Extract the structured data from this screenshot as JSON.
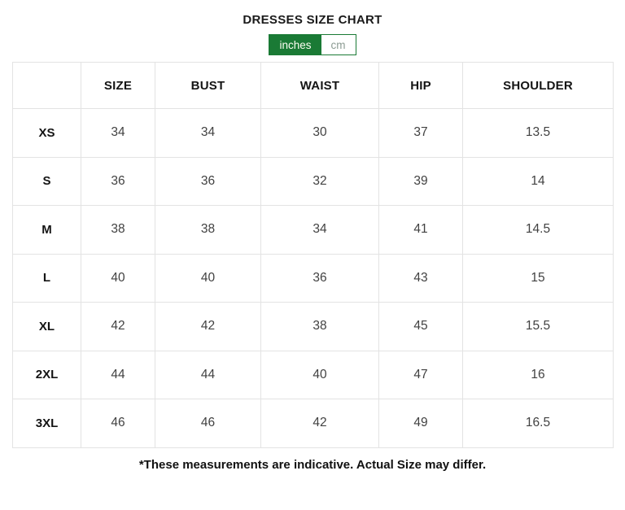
{
  "page": {
    "title": "DRESSES SIZE CHART",
    "footnote": "*These measurements are indicative. Actual Size may differ."
  },
  "unit_toggle": {
    "options": [
      {
        "label": "inches",
        "selected": true
      },
      {
        "label": "cm",
        "selected": false
      }
    ]
  },
  "colors": {
    "accent_green": "#1a7a35",
    "toggle_selected_text": "#fdfdf2",
    "toggle_unselected_text": "#8c9c93",
    "table_border": "#e3e3e3",
    "header_text": "#141414",
    "cell_text": "#414141"
  },
  "size_table": {
    "columns": [
      "",
      "SIZE",
      "BUST",
      "WAIST",
      "HIP",
      "SHOULDER"
    ],
    "rows": [
      {
        "label": "XS",
        "values": [
          "34",
          "34",
          "30",
          "37",
          "13.5"
        ]
      },
      {
        "label": "S",
        "values": [
          "36",
          "36",
          "32",
          "39",
          "14"
        ]
      },
      {
        "label": "M",
        "values": [
          "38",
          "38",
          "34",
          "41",
          "14.5"
        ]
      },
      {
        "label": "L",
        "values": [
          "40",
          "40",
          "36",
          "43",
          "15"
        ]
      },
      {
        "label": "XL",
        "values": [
          "42",
          "42",
          "38",
          "45",
          "15.5"
        ]
      },
      {
        "label": "2XL",
        "values": [
          "44",
          "44",
          "40",
          "47",
          "16"
        ]
      },
      {
        "label": "3XL",
        "values": [
          "46",
          "46",
          "42",
          "49",
          "16.5"
        ]
      }
    ]
  }
}
